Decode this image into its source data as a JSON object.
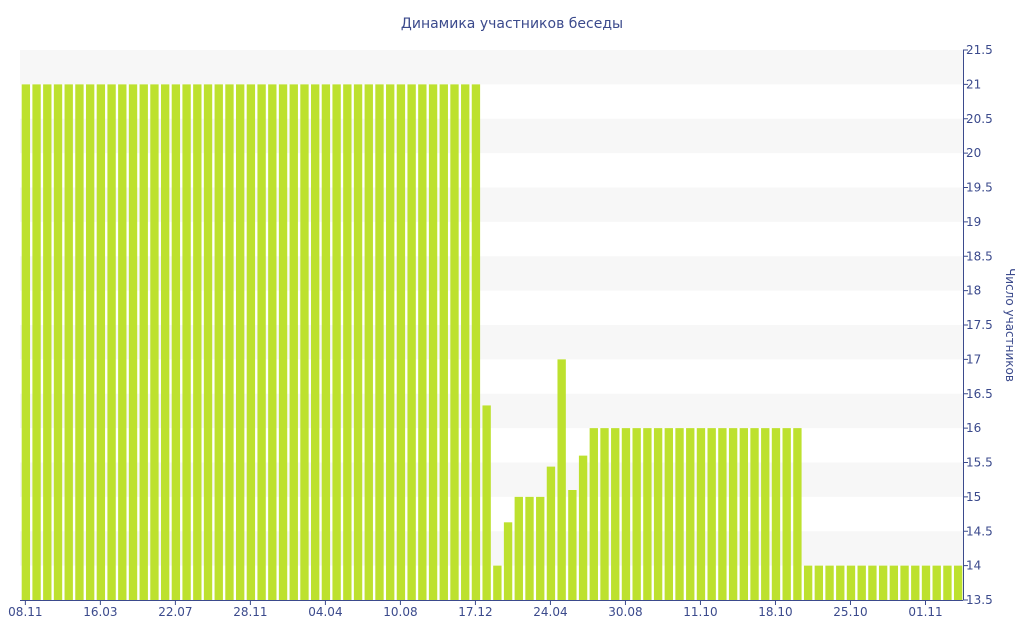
{
  "chart_data": {
    "type": "bar",
    "title": "Динамика участников беседы",
    "xlabel": "",
    "ylabel": "Число участников",
    "ylim": [
      13.5,
      21.5
    ],
    "y_ticks": [
      13.5,
      14,
      14.5,
      15,
      15.5,
      16,
      16.5,
      17,
      17.5,
      18,
      18.5,
      19,
      19.5,
      20,
      20.5,
      21,
      21.5
    ],
    "y_axis_side": "right",
    "x_tick_labels": [
      {
        "index": 0,
        "label": "08.11"
      },
      {
        "index": 7,
        "label": "16.03"
      },
      {
        "index": 14,
        "label": "22.07"
      },
      {
        "index": 21,
        "label": "28.11"
      },
      {
        "index": 28,
        "label": "04.04"
      },
      {
        "index": 35,
        "label": "10.08"
      },
      {
        "index": 42,
        "label": "17.12"
      },
      {
        "index": 49,
        "label": "24.04"
      },
      {
        "index": 56,
        "label": "30.08"
      },
      {
        "index": 63,
        "label": "11.10"
      },
      {
        "index": 70,
        "label": "18.10"
      },
      {
        "index": 77,
        "label": "25.10"
      },
      {
        "index": 84,
        "label": "01.11"
      }
    ],
    "bar_color": "#bde12e",
    "grid": "alternating horizontal bands",
    "band_color": "#f7f7f7",
    "axis_color": "#3b4a8c",
    "values": [
      21,
      21,
      21,
      21,
      21,
      21,
      21,
      21,
      21,
      21,
      21,
      21,
      21,
      21,
      21,
      21,
      21,
      21,
      21,
      21,
      21,
      21,
      21,
      21,
      21,
      21,
      21,
      21,
      21,
      21,
      21,
      21,
      21,
      21,
      21,
      21,
      21,
      21,
      21,
      21,
      21,
      21,
      21,
      16.33,
      14,
      14.63,
      15,
      15,
      15,
      15.44,
      17,
      15.1,
      15.6,
      16,
      16,
      16,
      16,
      16,
      16,
      16,
      16,
      16,
      16,
      16,
      16,
      16,
      16,
      16,
      16,
      16,
      16,
      16,
      16,
      14,
      14,
      14,
      14,
      14,
      14,
      14,
      14,
      14,
      14,
      14,
      14,
      14,
      14,
      14
    ]
  }
}
